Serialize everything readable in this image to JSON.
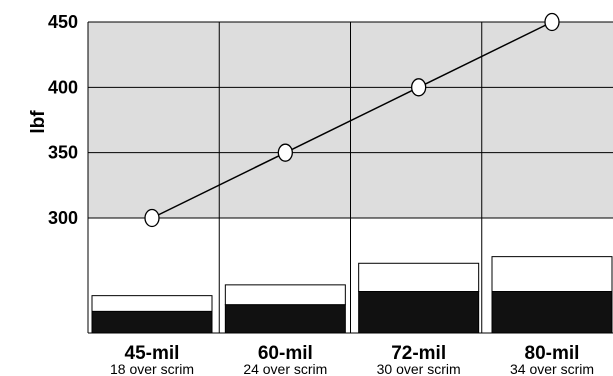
{
  "chart_data": {
    "type": "line",
    "ylabel": "lbf",
    "ylim": [
      300,
      450
    ],
    "yticks": [
      300,
      350,
      400,
      450
    ],
    "grid": true,
    "categories": [
      {
        "name": "45-mil",
        "detail": "18 over scrim"
      },
      {
        "name": "60-mil",
        "detail": "24 over scrim"
      },
      {
        "name": "72-mil",
        "detail": "30 over scrim"
      },
      {
        "name": "80-mil",
        "detail": "34 over scrim"
      }
    ],
    "values": [
      300,
      350,
      400,
      450
    ],
    "membrane_layers": [
      {
        "total": 0.45,
        "lower": 0.26
      },
      {
        "total": 0.58,
        "lower": 0.34
      },
      {
        "total": 0.84,
        "lower": 0.5
      },
      {
        "total": 0.92,
        "lower": 0.5
      }
    ],
    "colors": {
      "plot_background": "#dddddd",
      "grid": "#000000",
      "line": "#000000",
      "marker_fill": "#ffffff",
      "layer_lower": "#111111",
      "layer_upper": "#ffffff"
    }
  }
}
